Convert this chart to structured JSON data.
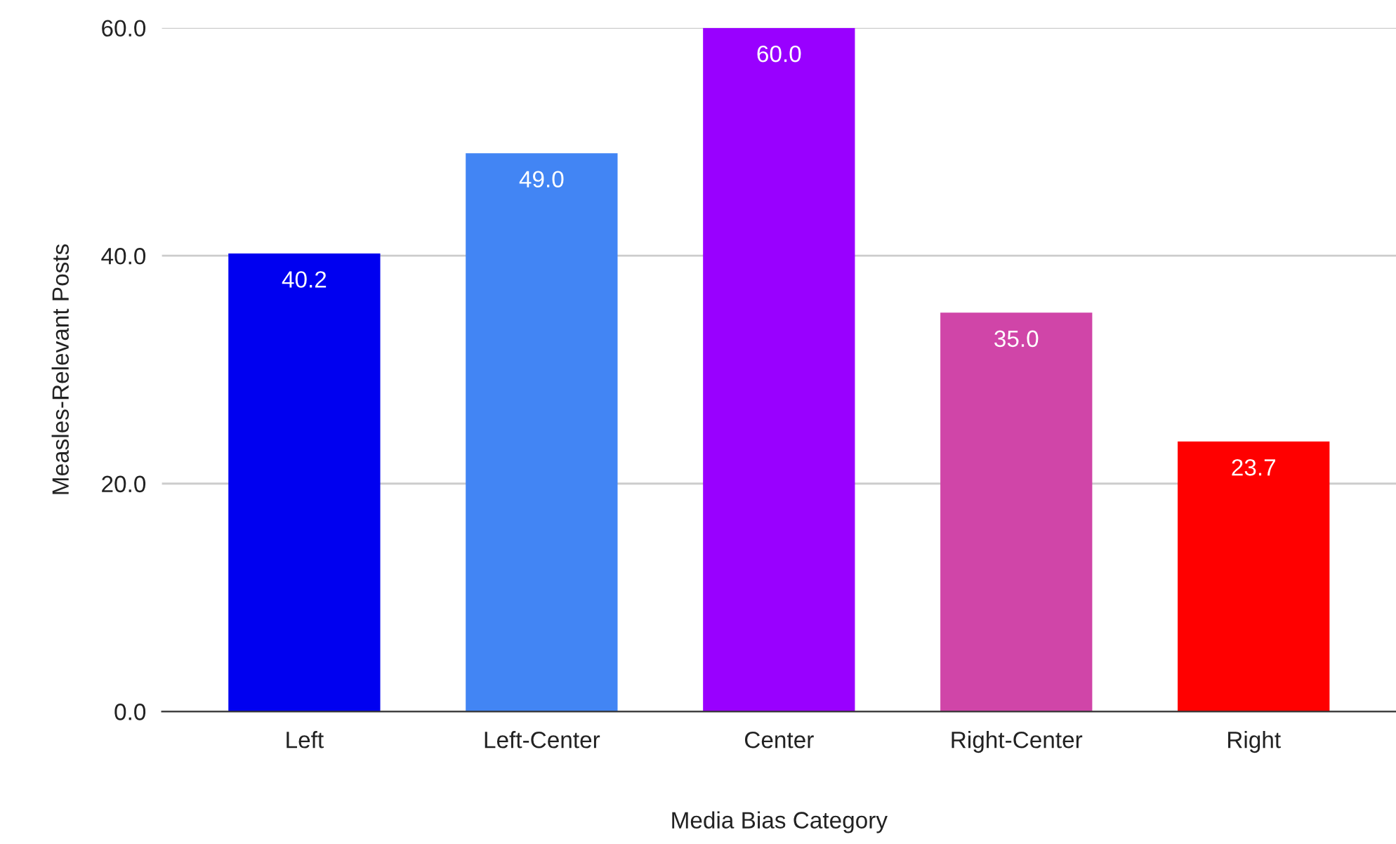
{
  "chart_data": {
    "type": "bar",
    "xlabel": "Media Bias Category",
    "ylabel": "Measles-Relevant Posts",
    "categories": [
      "Left",
      "Left-Center",
      "Center",
      "Right-Center",
      "Right"
    ],
    "values": [
      40.2,
      49.0,
      60.0,
      35.0,
      23.7
    ],
    "colors": [
      "#0000f0",
      "#4285f4",
      "#9900ff",
      "#d045a8",
      "#ff0000"
    ],
    "value_labels": [
      "40.2",
      "49.0",
      "60.0",
      "35.0",
      "23.7"
    ],
    "ylim": [
      0,
      60
    ],
    "yticks": [
      {
        "value": 0,
        "label": "0.0"
      },
      {
        "value": 20,
        "label": "20.0"
      },
      {
        "value": 40,
        "label": "40.0"
      },
      {
        "value": 60,
        "label": "60.0"
      }
    ],
    "grid": "y",
    "legend": false
  }
}
